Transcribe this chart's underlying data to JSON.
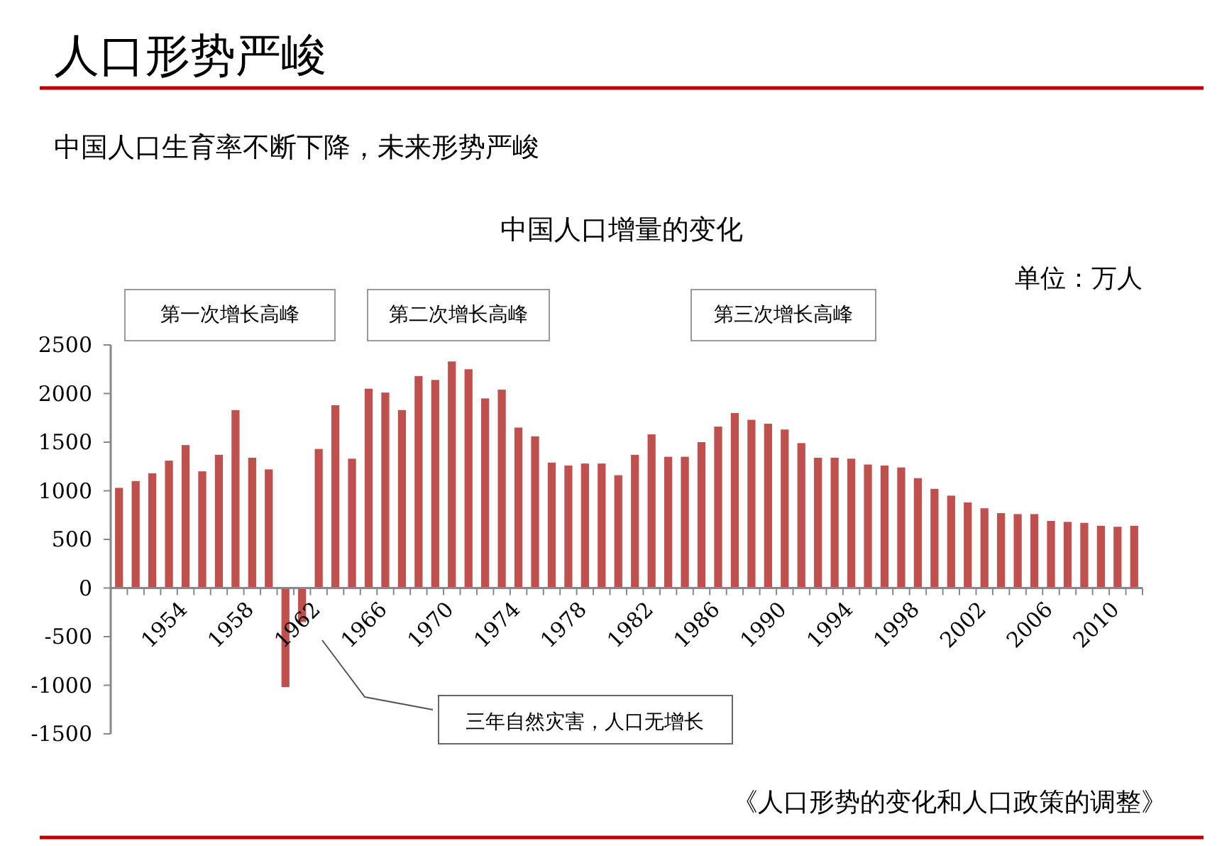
{
  "chart_data": {
    "type": "bar",
    "title": "中国人口增量的变化",
    "annotations": [
      "人口形势严峻",
      "中国人口生育率不断下降，未来形势严峻",
      "单位：万人",
      "第一次增长高峰",
      "第二次增长高峰",
      "第三次增长高峰",
      "三年自然灾害，人口无增长",
      "《人口形势的变化和人口政策的调整》"
    ],
    "categories": [
      null,
      null,
      null,
      null,
      "1954",
      null,
      null,
      null,
      "1958",
      null,
      null,
      null,
      "1962",
      null,
      null,
      null,
      "1966",
      null,
      null,
      null,
      "1970",
      null,
      null,
      null,
      "1974",
      null,
      null,
      null,
      "1978",
      null,
      null,
      null,
      "1982",
      null,
      null,
      null,
      "1986",
      null,
      null,
      null,
      "1990",
      null,
      null,
      null,
      "1994",
      null,
      null,
      null,
      "1998",
      null,
      null,
      null,
      "2002",
      null,
      null,
      null,
      "2006",
      null,
      null,
      null,
      "2010",
      null
    ],
    "values": [
      1030,
      1100,
      1180,
      1310,
      1470,
      1200,
      1370,
      1830,
      1340,
      1220,
      -1020,
      -350,
      1430,
      1880,
      1330,
      2050,
      2010,
      1830,
      2180,
      2140,
      2330,
      2250,
      1950,
      2040,
      1650,
      1560,
      1290,
      1260,
      1280,
      1280,
      1160,
      1370,
      1580,
      1350,
      1350,
      1500,
      1660,
      1800,
      1730,
      1690,
      1630,
      1490,
      1340,
      1340,
      1330,
      1270,
      1260,
      1240,
      1130,
      1020,
      950,
      880,
      820,
      770,
      760,
      760,
      690,
      680,
      670,
      640,
      630,
      640
    ],
    "color": "#c0504d",
    "ylim": [
      -1500,
      2500
    ],
    "yticks": [
      -1500,
      -1000,
      -500,
      0,
      500,
      1000,
      1500,
      2000,
      2500
    ],
    "grid": false
  }
}
